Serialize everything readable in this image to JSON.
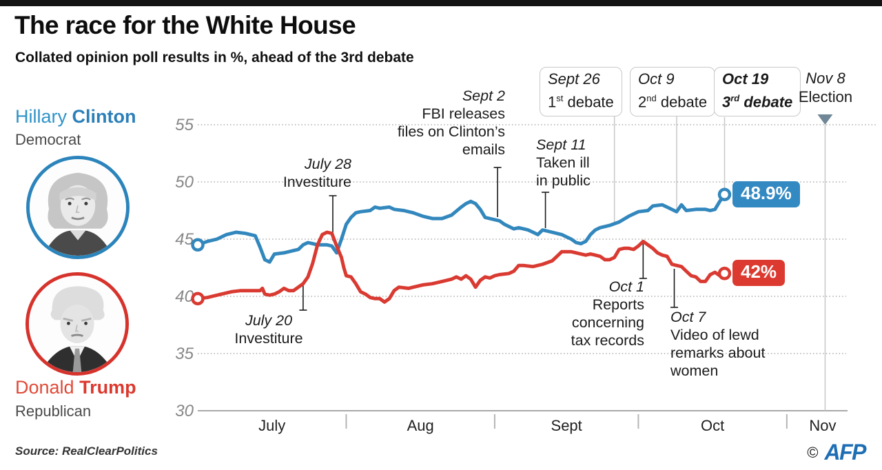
{
  "header": {
    "title": "The race for the White House",
    "subtitle": "Collated opinion poll results in %, ahead of the 3rd debate"
  },
  "candidates": {
    "clinton": {
      "first": "Hillary ",
      "last": "Clinton",
      "party": "Democrat",
      "color": "#2b7fb8"
    },
    "trump": {
      "first": "Donald ",
      "last": "Trump",
      "party": "Republican",
      "color": "#dc392e"
    }
  },
  "footer": {
    "source": "Source: RealClearPolitics",
    "copyright": "©",
    "agency": "AFP"
  },
  "chart_data": {
    "type": "line",
    "title": "Collated opinion poll results in %, ahead of the 3rd debate",
    "ylabel": "%",
    "ylim": [
      30,
      55
    ],
    "yticks": [
      30,
      35,
      40,
      45,
      50,
      55
    ],
    "grid": "dashed-horizontal",
    "x_axis": {
      "unit": "days from July 1",
      "months": [
        {
          "label": "July",
          "center_day": 15.5
        },
        {
          "label": "Aug",
          "center_day": 46.5
        },
        {
          "label": "Sept",
          "center_day": 77
        },
        {
          "label": "Oct",
          "center_day": 107.5
        },
        {
          "label": "Nov",
          "center_day": 130.5
        }
      ],
      "month_tick_days": [
        31,
        62,
        92,
        123
      ]
    },
    "series": [
      {
        "name": "Clinton",
        "color": "#3287bd",
        "end_label": "48.9%",
        "end_value": 48.9,
        "points": [
          [
            0,
            44.5
          ],
          [
            2,
            44.8
          ],
          [
            4,
            45.0
          ],
          [
            6,
            45.4
          ],
          [
            8,
            45.6
          ],
          [
            10,
            45.5
          ],
          [
            11,
            45.4
          ],
          [
            12,
            45.3
          ],
          [
            13,
            44.3
          ],
          [
            14,
            43.2
          ],
          [
            15,
            43.0
          ],
          [
            16,
            43.7
          ],
          [
            18,
            43.8
          ],
          [
            20,
            44.0
          ],
          [
            21,
            44.1
          ],
          [
            22,
            44.5
          ],
          [
            23,
            44.7
          ],
          [
            24,
            44.6
          ],
          [
            25,
            44.5
          ],
          [
            27,
            44.5
          ],
          [
            28,
            44.4
          ],
          [
            29,
            43.8
          ],
          [
            30,
            45.0
          ],
          [
            31,
            46.3
          ],
          [
            32,
            46.9
          ],
          [
            33,
            47.3
          ],
          [
            34,
            47.4
          ],
          [
            36,
            47.5
          ],
          [
            37,
            47.8
          ],
          [
            38,
            47.7
          ],
          [
            40,
            47.8
          ],
          [
            41,
            47.6
          ],
          [
            43,
            47.5
          ],
          [
            45,
            47.3
          ],
          [
            47,
            47.0
          ],
          [
            49,
            46.8
          ],
          [
            51,
            46.8
          ],
          [
            53,
            47.1
          ],
          [
            55,
            47.8
          ],
          [
            56,
            48.1
          ],
          [
            57,
            48.3
          ],
          [
            58,
            48.1
          ],
          [
            59,
            47.6
          ],
          [
            60,
            46.9
          ],
          [
            62,
            46.7
          ],
          [
            63,
            46.6
          ],
          [
            64,
            46.3
          ],
          [
            66,
            45.9
          ],
          [
            67,
            46.0
          ],
          [
            69,
            45.8
          ],
          [
            70,
            45.6
          ],
          [
            71,
            45.4
          ],
          [
            72,
            45.8
          ],
          [
            74,
            45.6
          ],
          [
            76,
            45.4
          ],
          [
            77,
            45.2
          ],
          [
            78,
            45.0
          ],
          [
            79,
            44.7
          ],
          [
            80,
            44.6
          ],
          [
            81,
            44.8
          ],
          [
            82,
            45.4
          ],
          [
            83,
            45.8
          ],
          [
            84,
            46.0
          ],
          [
            86,
            46.2
          ],
          [
            88,
            46.5
          ],
          [
            90,
            47.0
          ],
          [
            92,
            47.4
          ],
          [
            94,
            47.5
          ],
          [
            95,
            47.9
          ],
          [
            97,
            48.0
          ],
          [
            98,
            47.8
          ],
          [
            100,
            47.4
          ],
          [
            101,
            48.0
          ],
          [
            102,
            47.5
          ],
          [
            104,
            47.6
          ],
          [
            106,
            47.6
          ],
          [
            107,
            47.5
          ],
          [
            108,
            47.6
          ],
          [
            109,
            48.3
          ],
          [
            110,
            48.9
          ]
        ]
      },
      {
        "name": "Trump",
        "color": "#d93a31",
        "end_label": "42%",
        "end_value": 42,
        "points": [
          [
            0,
            39.8
          ],
          [
            2,
            39.9
          ],
          [
            3,
            40.0
          ],
          [
            5,
            40.2
          ],
          [
            7,
            40.4
          ],
          [
            9,
            40.5
          ],
          [
            11,
            40.5
          ],
          [
            13,
            40.5
          ],
          [
            13.5,
            40.7
          ],
          [
            14,
            40.2
          ],
          [
            15,
            40.1
          ],
          [
            16,
            40.2
          ],
          [
            17,
            40.4
          ],
          [
            18,
            40.7
          ],
          [
            19,
            40.5
          ],
          [
            20,
            40.5
          ],
          [
            21,
            40.8
          ],
          [
            22,
            41.1
          ],
          [
            23,
            41.7
          ],
          [
            24,
            42.9
          ],
          [
            25,
            44.5
          ],
          [
            26,
            45.4
          ],
          [
            27,
            45.6
          ],
          [
            28,
            45.5
          ],
          [
            29,
            44.4
          ],
          [
            30,
            43.4
          ],
          [
            30.5,
            42.5
          ],
          [
            31,
            41.8
          ],
          [
            32,
            41.7
          ],
          [
            33,
            41.1
          ],
          [
            34,
            40.4
          ],
          [
            35,
            40.2
          ],
          [
            36,
            39.9
          ],
          [
            37,
            39.8
          ],
          [
            38,
            39.8
          ],
          [
            39,
            39.5
          ],
          [
            40,
            39.8
          ],
          [
            41,
            40.5
          ],
          [
            42,
            40.8
          ],
          [
            44,
            40.7
          ],
          [
            45,
            40.8
          ],
          [
            47,
            41.0
          ],
          [
            49,
            41.1
          ],
          [
            51,
            41.3
          ],
          [
            53,
            41.5
          ],
          [
            54,
            41.7
          ],
          [
            55,
            41.5
          ],
          [
            56,
            41.8
          ],
          [
            57,
            41.5
          ],
          [
            58,
            40.8
          ],
          [
            59,
            41.4
          ],
          [
            60,
            41.7
          ],
          [
            61,
            41.6
          ],
          [
            62,
            41.8
          ],
          [
            63,
            41.9
          ],
          [
            65,
            42.0
          ],
          [
            66,
            42.2
          ],
          [
            67,
            42.7
          ],
          [
            68,
            42.7
          ],
          [
            70,
            42.6
          ],
          [
            72,
            42.8
          ],
          [
            74,
            43.1
          ],
          [
            75,
            43.5
          ],
          [
            76,
            43.9
          ],
          [
            78,
            43.9
          ],
          [
            79,
            43.8
          ],
          [
            81,
            43.6
          ],
          [
            82,
            43.7
          ],
          [
            83,
            43.6
          ],
          [
            84,
            43.5
          ],
          [
            85,
            43.2
          ],
          [
            86,
            43.2
          ],
          [
            87,
            43.4
          ],
          [
            88,
            44.1
          ],
          [
            89,
            44.2
          ],
          [
            90,
            44.2
          ],
          [
            91,
            44.1
          ],
          [
            92,
            44.4
          ],
          [
            93,
            44.8
          ],
          [
            94,
            44.5
          ],
          [
            95,
            44.2
          ],
          [
            96,
            43.8
          ],
          [
            97,
            43.6
          ],
          [
            98,
            43.5
          ],
          [
            99,
            42.8
          ],
          [
            100,
            42.7
          ],
          [
            101,
            42.6
          ],
          [
            102,
            42.2
          ],
          [
            103,
            41.8
          ],
          [
            104,
            41.7
          ],
          [
            105,
            41.3
          ],
          [
            106,
            41.3
          ],
          [
            107,
            41.9
          ],
          [
            108,
            42.1
          ],
          [
            109,
            41.8
          ],
          [
            110,
            42.0
          ]
        ]
      }
    ],
    "events": [
      {
        "id": "jul20",
        "date": "July 20",
        "lines": [
          "Investiture"
        ],
        "style": "plain",
        "day": 22
      },
      {
        "id": "jul28",
        "date": "July 28",
        "lines": [
          "Investiture"
        ],
        "style": "plain",
        "day": 28.2
      },
      {
        "id": "sept2",
        "date": "Sept 2",
        "lines": [
          "FBI releases",
          "files on Clinton’s",
          "emails"
        ],
        "style": "plain",
        "day": 62.6
      },
      {
        "id": "sept11",
        "date": "Sept 11",
        "lines": [
          "Taken ill",
          "in public"
        ],
        "style": "plain",
        "day": 72.6
      },
      {
        "id": "sept26",
        "date": "Sept 26",
        "label": {
          "num": "1",
          "sup": "st",
          "rest": " debate"
        },
        "style": "boxed",
        "day": 87
      },
      {
        "id": "oct1",
        "date": "Oct 1",
        "lines": [
          "Reports",
          "concerning",
          "tax records"
        ],
        "style": "plain",
        "day": 93
      },
      {
        "id": "oct7",
        "date": "Oct 7",
        "lines": [
          "Video of lewd",
          "remarks about",
          "women"
        ],
        "style": "plain",
        "day": 99.5
      },
      {
        "id": "oct9",
        "date": "Oct 9",
        "label": {
          "num": "2",
          "sup": "nd",
          "rest": " debate"
        },
        "style": "boxed",
        "day": 100
      },
      {
        "id": "oct19",
        "date": "Oct 19",
        "label": {
          "num": "3",
          "sup": "rd",
          "rest": " debate"
        },
        "style": "boxed",
        "bold": true,
        "day": 110
      },
      {
        "id": "nov8",
        "date": "Nov 8",
        "lines": [
          "Election"
        ],
        "style": "election-marker",
        "day": 131
      }
    ]
  }
}
